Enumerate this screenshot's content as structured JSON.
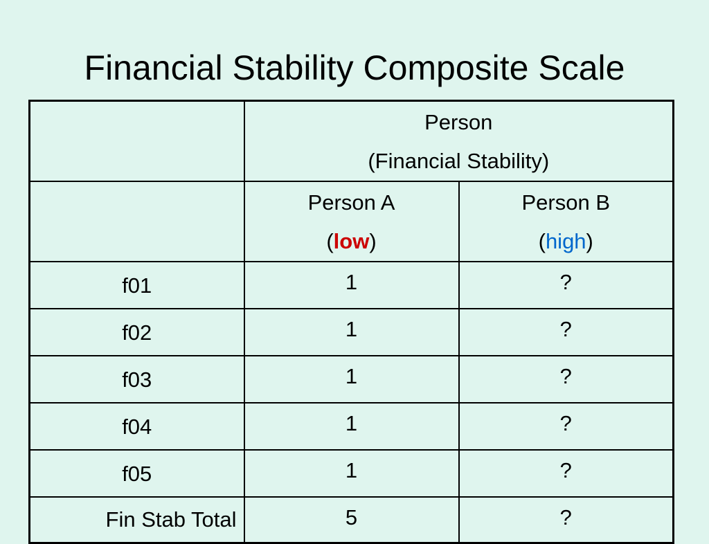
{
  "title": "Financial Stability Composite Scale",
  "header": {
    "person_line1": "Person",
    "person_line2": "(Financial Stability)",
    "person_a": {
      "name": "Person A",
      "open": "(",
      "level": "low",
      "close": ")",
      "level_color": "#cc0000"
    },
    "person_b": {
      "name": "Person B",
      "open": "(",
      "level": "high",
      "close": ")",
      "level_color": "#0066cc"
    }
  },
  "rows": [
    {
      "label": "f01",
      "a": "1",
      "b": "?"
    },
    {
      "label": "f02",
      "a": "1",
      "b": "?"
    },
    {
      "label": "f03",
      "a": "1",
      "b": "?"
    },
    {
      "label": "f04",
      "a": "1",
      "b": "?"
    },
    {
      "label": "f05",
      "a": "1",
      "b": "?"
    }
  ],
  "total": {
    "label": "Fin Stab Total",
    "a": "5",
    "b": "?"
  }
}
